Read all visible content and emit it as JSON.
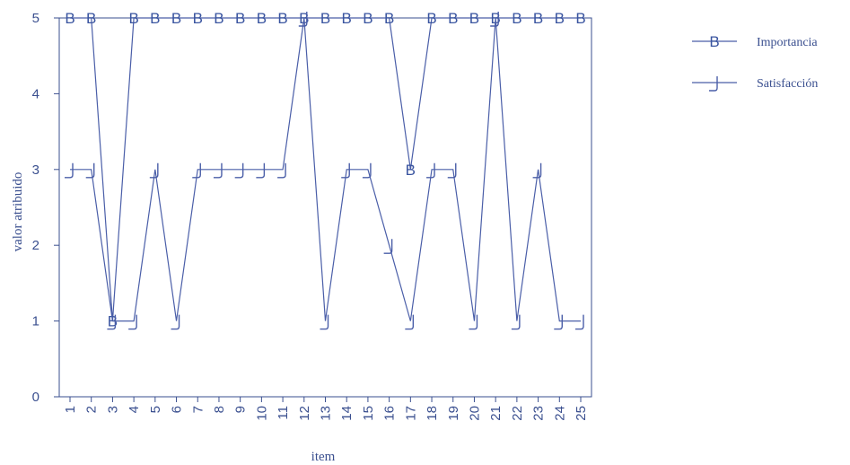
{
  "chart_data": {
    "type": "line",
    "title": "",
    "xlabel": "item",
    "ylabel": "valor atribuido",
    "ylim": [
      0,
      5
    ],
    "yticks": [
      0,
      1,
      2,
      3,
      4,
      5
    ],
    "grid": false,
    "legend_position": "top-right",
    "colors": {
      "axis": "#3a4f8f",
      "series": "#4a5ea8"
    },
    "x": [
      "1",
      "2",
      "3",
      "4",
      "5",
      "6",
      "7",
      "8",
      "9",
      "10",
      "11",
      "12",
      "13",
      "14",
      "15",
      "16",
      "17",
      "18",
      "19",
      "20",
      "21",
      "22",
      "23",
      "24",
      "25"
    ],
    "series": [
      {
        "name": "Importancia",
        "marker": "B",
        "values": [
          5,
          5,
          1,
          5,
          5,
          5,
          5,
          5,
          5,
          5,
          5,
          5,
          5,
          5,
          5,
          5,
          3,
          5,
          5,
          5,
          5,
          5,
          5,
          5,
          5
        ]
      },
      {
        "name": "Satisfacción",
        "marker": "J",
        "values": [
          3,
          3,
          1,
          1,
          3,
          1,
          3,
          3,
          3,
          3,
          3,
          5,
          1,
          3,
          3,
          2,
          1,
          3,
          3,
          1,
          5,
          1,
          3,
          1,
          1
        ]
      }
    ]
  }
}
